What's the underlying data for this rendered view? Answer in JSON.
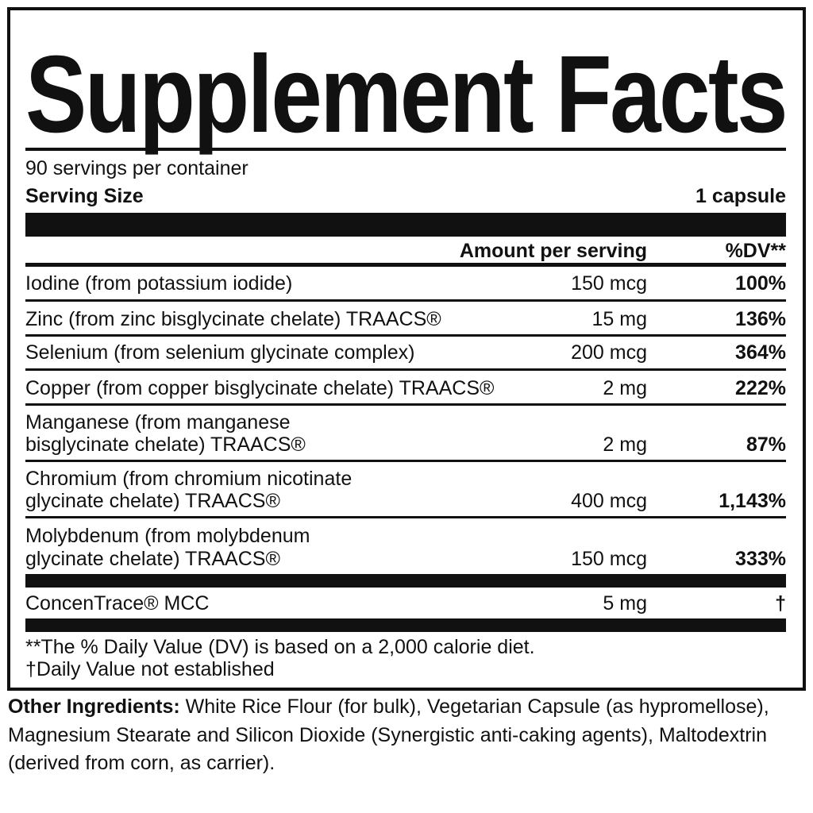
{
  "title": "Supplement Facts",
  "servings_per_container": "90 servings per container",
  "serving_size_label": "Serving Size",
  "serving_size_value": "1 capsule",
  "header": {
    "amount": "Amount per serving",
    "dv": "%DV**"
  },
  "rows": [
    {
      "name": "Iodine (from potassium iodide)",
      "amount": "150 mcg",
      "dv": "100%"
    },
    {
      "name": "Zinc (from zinc bisglycinate chelate) TRAACS®",
      "amount": "15 mg",
      "dv": "136%"
    },
    {
      "name": "Selenium (from selenium glycinate  complex)",
      "amount": "200 mcg",
      "dv": "364%"
    },
    {
      "name": "Copper (from copper bisglycinate chelate) TRAACS®",
      "amount": "2 mg",
      "dv": "222%"
    },
    {
      "name_line1": "Manganese (from manganese",
      "name_line2": "bisglycinate chelate) TRAACS®",
      "amount": "2 mg",
      "dv": "87%"
    },
    {
      "name_line1": "Chromium (from chromium nicotinate",
      "name_line2": "glycinate chelate) TRAACS®",
      "amount": "400 mcg",
      "dv": "1,143%"
    },
    {
      "name_line1": "Molybdenum (from molybdenum",
      "name_line2": "glycinate chelate) TRAACS®",
      "amount": "150 mcg",
      "dv": "333%"
    },
    {
      "name": "ConcenTrace® MCC",
      "amount": "5 mg",
      "dv": "†"
    }
  ],
  "footnotes": [
    "**The % Daily Value (DV) is based on a 2,000 calorie diet.",
    "†Daily Value not established"
  ],
  "other_ingredients": {
    "label": "Other Ingredients:",
    "text": " White Rice Flour (for bulk), Vegetarian Capsule (as hypromellose), Magnesium Stearate and Silicon Dioxide (Synergistic anti-caking agents), Maltodextrin (derived from corn, as carrier)."
  }
}
